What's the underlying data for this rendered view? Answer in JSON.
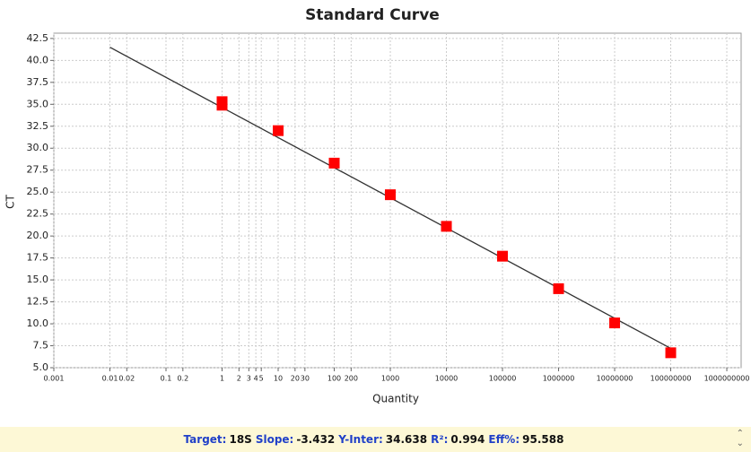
{
  "chart_data": {
    "type": "scatter",
    "title": "Standard Curve",
    "x_label": "Quantity",
    "y_label": "CT",
    "xscale": "log",
    "grid": true,
    "xlim": [
      0.001,
      1800000000
    ],
    "ylim": [
      5,
      43.1
    ],
    "xticks": [
      0.001,
      0.01,
      0.02,
      0.1,
      0.2,
      1,
      2,
      3,
      4,
      5,
      10,
      20,
      30,
      100,
      200,
      1000,
      10000,
      100000,
      1000000,
      10000000,
      100000000,
      1000000000
    ],
    "yticks": [
      {
        "value": 5,
        "label": "5.0"
      },
      7.5,
      {
        "value": 10,
        "label": "10.0"
      },
      12.5,
      {
        "value": 15,
        "label": "15.0"
      },
      17.5,
      {
        "value": 20,
        "label": "20.0"
      },
      22.5,
      {
        "value": 25,
        "label": "25.0"
      },
      27.5,
      {
        "value": 30,
        "label": "30.0"
      },
      32.5,
      {
        "value": 35,
        "label": "35.0"
      },
      37.5,
      {
        "value": 40,
        "label": "40.0"
      },
      42.5
    ],
    "series": [
      {
        "color": "#ff0000",
        "x": [
          1,
          1,
          10,
          100,
          1000,
          10000,
          100000,
          1000000,
          10000000,
          100000000
        ],
        "values": [
          35.3,
          34.9,
          32.0,
          28.3,
          24.7,
          21.1,
          17.7,
          14.0,
          10.1,
          6.7
        ]
      }
    ],
    "fit_line": {
      "color": "#333333",
      "x": [
        0.01,
        100000000
      ],
      "values": [
        41.5,
        7.2
      ]
    }
  },
  "status_bar": {
    "items": [
      {
        "label": "Target:",
        "value": "18S"
      },
      {
        "label": "Slope:",
        "value": "-3.432"
      },
      {
        "label": "Y-Inter:",
        "value": "34.638"
      },
      {
        "label": "R²:",
        "value": "0.994"
      },
      {
        "label": "Eff%:",
        "value": "95.588"
      }
    ]
  }
}
